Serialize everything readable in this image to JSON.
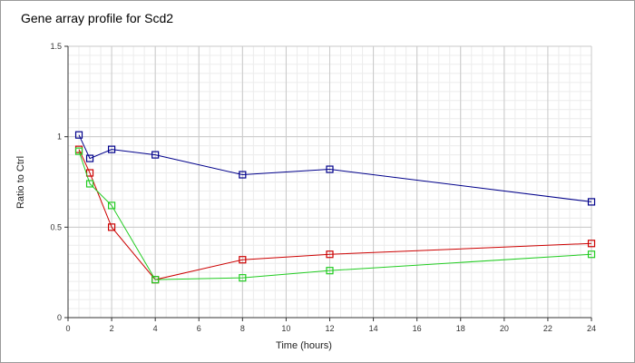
{
  "chart_data": {
    "type": "line",
    "title": "Gene array profile for Scd2",
    "xlabel": "Time (hours)",
    "ylabel": "Ratio to Ctrl",
    "xlim": [
      0,
      24
    ],
    "ylim": [
      0,
      1.5
    ],
    "xticks": [
      0,
      2,
      4,
      6,
      8,
      10,
      12,
      14,
      16,
      18,
      20,
      22,
      24
    ],
    "xtick_labels": [
      "0",
      "2",
      "4",
      "6",
      "8",
      "10",
      "12",
      "14",
      "16",
      "18",
      "20",
      "22",
      "24"
    ],
    "yticks": [
      0,
      0.5,
      1,
      1.5
    ],
    "ytick_labels": [
      "0",
      "0.5",
      "1",
      "1.5"
    ],
    "grid": true,
    "legend": "none",
    "x": [
      0.5,
      1,
      2,
      4,
      8,
      12,
      24
    ],
    "series": [
      {
        "color": "#00008b",
        "marker": "square",
        "values": [
          1.01,
          0.88,
          0.93,
          0.9,
          0.79,
          0.82,
          0.64
        ]
      },
      {
        "color": "#cc0000",
        "marker": "square",
        "values": [
          0.93,
          0.8,
          0.5,
          0.21,
          0.32,
          0.35,
          0.41
        ]
      },
      {
        "color": "#22cc22",
        "marker": "square",
        "values": [
          0.92,
          0.74,
          0.62,
          0.21,
          0.22,
          0.26,
          0.35
        ]
      }
    ]
  }
}
